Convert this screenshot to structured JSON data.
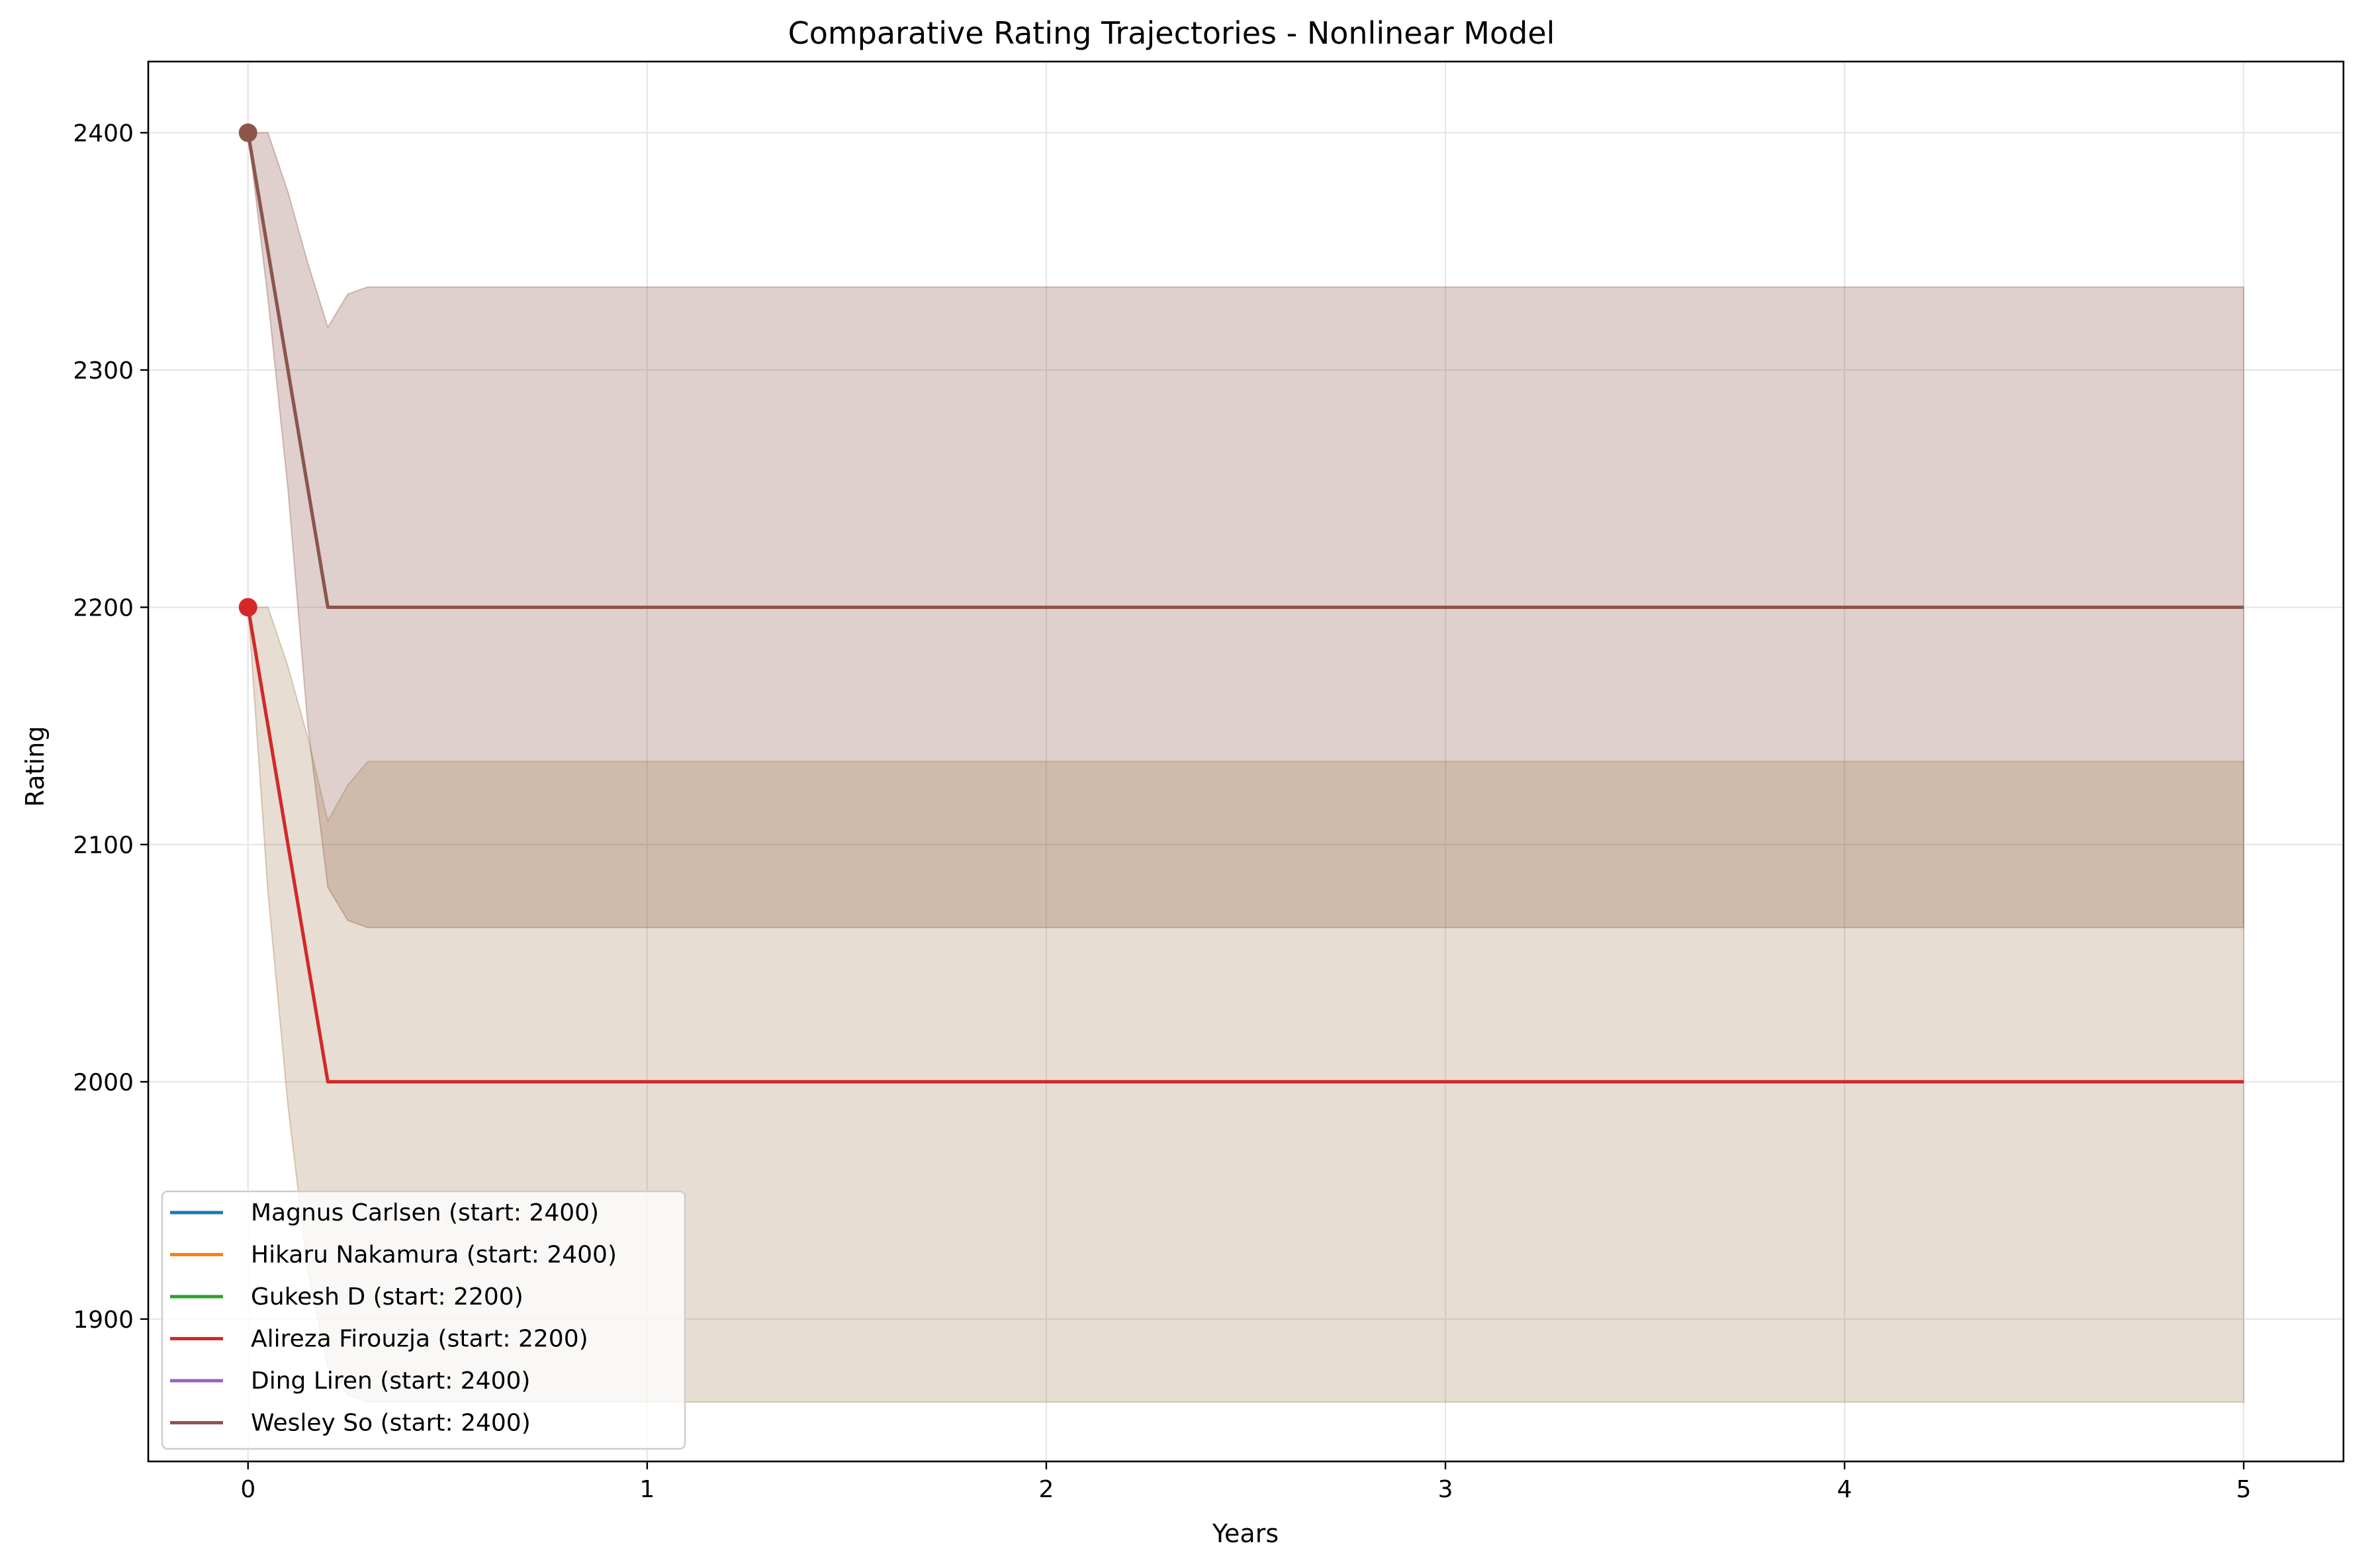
{
  "chart_data": {
    "type": "line",
    "title": "Comparative Rating Trajectories - Nonlinear Model",
    "xlabel": "Years",
    "ylabel": "Rating",
    "xlim": [
      -0.25,
      5.25
    ],
    "ylim": [
      1840,
      2430
    ],
    "xticks": [
      0,
      1,
      2,
      3,
      4,
      5
    ],
    "yticks": [
      1900,
      2000,
      2100,
      2200,
      2300,
      2400
    ],
    "grid": true,
    "legend_position": "lower-left",
    "legend": [
      {
        "label": "Magnus Carlsen (start: 2400)",
        "color": "#1f77b4"
      },
      {
        "label": "Hikaru Nakamura (start: 2400)",
        "color": "#ff7f0e"
      },
      {
        "label": "Gukesh D (start: 2200)",
        "color": "#2ca02c"
      },
      {
        "label": "Alireza Firouzja (start: 2200)",
        "color": "#d62728"
      },
      {
        "label": "Ding Liren (start: 2400)",
        "color": "#9467bd"
      },
      {
        "label": "Wesley So (start: 2400)",
        "color": "#8c564b"
      }
    ],
    "bands": [
      {
        "color": "#8c564b",
        "opacity": 0.28,
        "upper": [
          [
            0,
            2400
          ],
          [
            0.05,
            2400
          ],
          [
            0.1,
            2375
          ],
          [
            0.15,
            2345
          ],
          [
            0.2,
            2318
          ],
          [
            0.25,
            2332
          ],
          [
            0.3,
            2335
          ],
          [
            5,
            2335
          ]
        ],
        "lower": [
          [
            0,
            2400
          ],
          [
            0.05,
            2330
          ],
          [
            0.1,
            2250
          ],
          [
            0.15,
            2150
          ],
          [
            0.2,
            2082
          ],
          [
            0.25,
            2068
          ],
          [
            0.3,
            2065
          ],
          [
            5,
            2065
          ]
        ]
      },
      {
        "color": "#a0784b",
        "opacity": 0.25,
        "upper": [
          [
            0,
            2200
          ],
          [
            0.05,
            2200
          ],
          [
            0.1,
            2175
          ],
          [
            0.15,
            2145
          ],
          [
            0.2,
            2110
          ],
          [
            0.25,
            2125
          ],
          [
            0.3,
            2135
          ],
          [
            5,
            2135
          ]
        ],
        "lower": [
          [
            0,
            2200
          ],
          [
            0.05,
            2080
          ],
          [
            0.1,
            1990
          ],
          [
            0.15,
            1920
          ],
          [
            0.2,
            1880
          ],
          [
            0.25,
            1868
          ],
          [
            0.3,
            1865
          ],
          [
            5,
            1865
          ]
        ]
      }
    ],
    "series": [
      {
        "name": "Magnus Carlsen (start: 2400)",
        "color": "#1f77b4",
        "x": [
          0,
          0.2,
          5
        ],
        "y": [
          2400,
          2200,
          2200
        ]
      },
      {
        "name": "Hikaru Nakamura (start: 2400)",
        "color": "#ff7f0e",
        "x": [
          0,
          0.2,
          5
        ],
        "y": [
          2400,
          2200,
          2200
        ]
      },
      {
        "name": "Gukesh D (start: 2200)",
        "color": "#2ca02c",
        "x": [
          0,
          0.2,
          5
        ],
        "y": [
          2200,
          2000,
          2000
        ]
      },
      {
        "name": "Alireza Firouzja (start: 2200)",
        "color": "#d62728",
        "x": [
          0,
          0.2,
          5
        ],
        "y": [
          2200,
          2000,
          2000
        ]
      },
      {
        "name": "Ding Liren (start: 2400)",
        "color": "#9467bd",
        "x": [
          0,
          0.2,
          5
        ],
        "y": [
          2400,
          2200,
          2200
        ]
      },
      {
        "name": "Wesley So (start: 2400)",
        "color": "#8c564b",
        "x": [
          0,
          0.2,
          5
        ],
        "y": [
          2400,
          2200,
          2200
        ]
      }
    ],
    "start_markers": [
      {
        "x": 0,
        "y": 2400,
        "color": "#8c564b"
      },
      {
        "x": 0,
        "y": 2200,
        "color": "#d62728"
      }
    ]
  }
}
